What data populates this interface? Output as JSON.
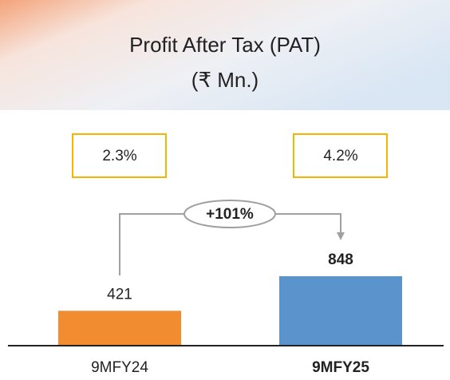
{
  "chart_data": {
    "type": "bar",
    "title": "Profit After Tax (PAT)",
    "subtitle": "(₹ Mn.)",
    "categories": [
      "9MFY24",
      "9MFY25"
    ],
    "values": [
      421,
      848
    ],
    "colors": [
      "#f28c30",
      "#5b93cc"
    ],
    "margins": [
      "2.3%",
      "4.2%"
    ],
    "growth": "+101%"
  }
}
